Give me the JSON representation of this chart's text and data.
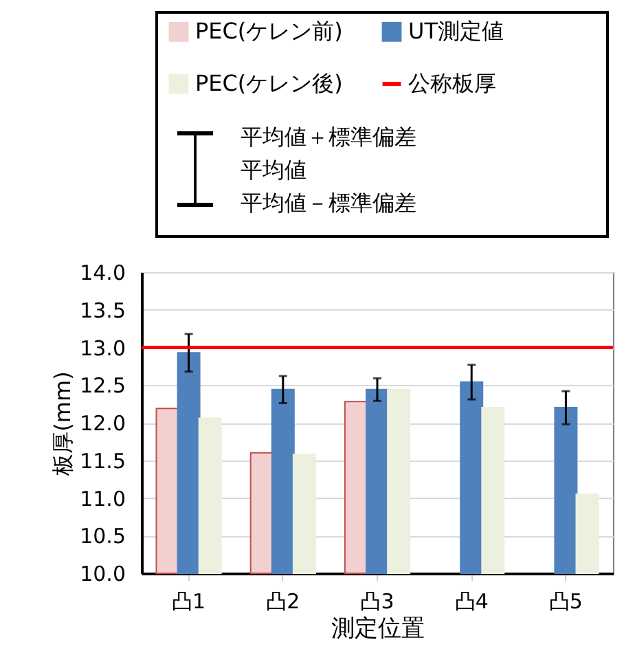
{
  "chart_data": {
    "type": "bar",
    "xlabel": "測定位置",
    "ylabel": "板厚(mm)",
    "categories": [
      "凸1",
      "凸2",
      "凸3",
      "凸4",
      "凸5"
    ],
    "series": [
      {
        "name": "PEC(ケレン前)",
        "color": "#f2d0d0",
        "values": [
          12.19,
          11.6,
          12.28,
          null,
          null
        ]
      },
      {
        "name": "UT測定値",
        "color": "#4f81bd",
        "values": [
          12.93,
          12.44,
          12.44,
          12.54,
          12.2
        ],
        "errors": [
          0.25,
          0.18,
          0.15,
          0.23,
          0.22
        ]
      },
      {
        "name": "PEC(ケレン後)",
        "color": "#ebf1de",
        "values": [
          12.06,
          11.58,
          12.44,
          12.2,
          11.05
        ]
      }
    ],
    "ref_lines": [
      {
        "axis": "y",
        "value": 13,
        "label": "公称板厚",
        "color": "#ff0000"
      }
    ],
    "annotations": [
      "平均値＋標準偏差",
      "平均値",
      "平均値－標準偏差"
    ],
    "ylim": [
      10,
      14
    ],
    "yticks": [
      {
        "value": 10,
        "label": "10.0"
      },
      {
        "value": 10.5,
        "label": "10.5"
      },
      {
        "value": 11,
        "label": "11.0"
      },
      {
        "value": 11.5,
        "label": "11.5"
      },
      {
        "value": 12,
        "label": "12.0"
      },
      {
        "value": 12.5,
        "label": "12.5"
      },
      {
        "value": 13,
        "label": "13.0"
      },
      {
        "value": 13.5,
        "label": "13.5"
      },
      {
        "value": 14,
        "label": "14.0"
      }
    ],
    "grid": "y",
    "legend": "top"
  }
}
